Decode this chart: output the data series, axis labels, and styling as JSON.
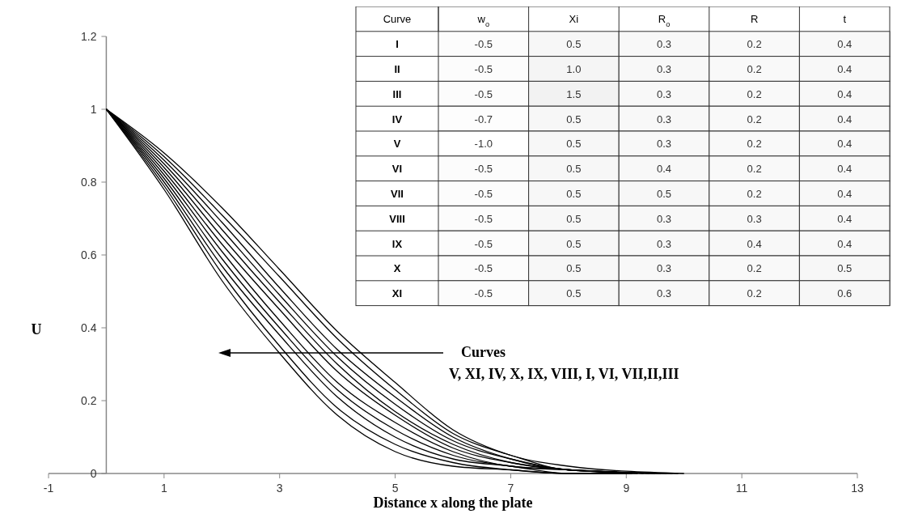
{
  "chart_data": [
    {
      "type": "line",
      "xlabel": "Distance x along the plate",
      "ylabel": "U",
      "series": [
        {
          "color": "#000000",
          "x": [
            0,
            1,
            2,
            3,
            4,
            5,
            6,
            7,
            8,
            9
          ],
          "values": [
            1,
            0.78,
            0.53,
            0.33,
            0.16,
            0.06,
            0.02,
            0.01,
            0,
            0
          ]
        },
        {
          "color": "#000000",
          "x": [
            0,
            1,
            2,
            3,
            4,
            5,
            6,
            7,
            8,
            9.1
          ],
          "values": [
            1,
            0.79,
            0.55,
            0.35,
            0.18,
            0.08,
            0.03,
            0.01,
            0,
            0
          ]
        },
        {
          "color": "#000000",
          "x": [
            0,
            1,
            2,
            3,
            4,
            5,
            6,
            7,
            8,
            9.2
          ],
          "values": [
            1,
            0.8,
            0.57,
            0.38,
            0.21,
            0.1,
            0.04,
            0.02,
            0,
            0
          ]
        },
        {
          "color": "#000000",
          "x": [
            0,
            1,
            2,
            3,
            4,
            5,
            6,
            7,
            8,
            9.3
          ],
          "values": [
            1,
            0.81,
            0.59,
            0.4,
            0.23,
            0.12,
            0.05,
            0.02,
            0.01,
            0
          ]
        },
        {
          "color": "#000000",
          "x": [
            0,
            1,
            2,
            3,
            4,
            5,
            6,
            7,
            8,
            9.4
          ],
          "values": [
            1,
            0.82,
            0.61,
            0.42,
            0.25,
            0.14,
            0.06,
            0.02,
            0.01,
            0
          ]
        },
        {
          "color": "#000000",
          "x": [
            0,
            1,
            2,
            3,
            4,
            5,
            6,
            7,
            8,
            9.5
          ],
          "values": [
            1,
            0.83,
            0.63,
            0.45,
            0.28,
            0.16,
            0.07,
            0.03,
            0.01,
            0
          ]
        },
        {
          "color": "#000000",
          "x": [
            0,
            1,
            2,
            3,
            4,
            5,
            6,
            7,
            8,
            9.6
          ],
          "values": [
            1,
            0.84,
            0.65,
            0.47,
            0.3,
            0.17,
            0.08,
            0.03,
            0.01,
            0
          ]
        },
        {
          "color": "#000000",
          "x": [
            0,
            1,
            2,
            3,
            4,
            5,
            6,
            7,
            8,
            9.7
          ],
          "values": [
            1,
            0.85,
            0.67,
            0.49,
            0.32,
            0.19,
            0.09,
            0.04,
            0.01,
            0
          ]
        },
        {
          "color": "#000000",
          "x": [
            0,
            1,
            2,
            3,
            4,
            5,
            6,
            7,
            8,
            9.8
          ],
          "values": [
            1,
            0.86,
            0.69,
            0.51,
            0.34,
            0.21,
            0.1,
            0.04,
            0.01,
            0
          ]
        },
        {
          "color": "#000000",
          "x": [
            0,
            1,
            2,
            3,
            4,
            5,
            6,
            7,
            8,
            9.9
          ],
          "values": [
            1,
            0.87,
            0.71,
            0.54,
            0.37,
            0.23,
            0.11,
            0.05,
            0.01,
            0
          ]
        },
        {
          "color": "#000000",
          "x": [
            0,
            1,
            2,
            3,
            4,
            5,
            6,
            7,
            8,
            10
          ],
          "values": [
            1,
            0.88,
            0.73,
            0.56,
            0.39,
            0.25,
            0.12,
            0.05,
            0.02,
            0
          ]
        }
      ],
      "xlim": [
        -1,
        13
      ],
      "xticks": [
        -1,
        1,
        3,
        5,
        7,
        9,
        11,
        13
      ],
      "ylim": [
        0,
        1.2
      ],
      "yticks": [
        0,
        0.2,
        0.4,
        0.6,
        0.8,
        1,
        1.2
      ],
      "annotations": [
        "Curves",
        "V, XI, IV, X, IX, VIII, I, VI, VII,II,III"
      ]
    },
    {
      "type": "heatmap",
      "ylabel": "Curve",
      "categories": [
        "w$_{o}$",
        "Xi",
        "R$_{o}$",
        "R",
        "t"
      ],
      "y_categories": [
        "I",
        "II",
        "III",
        "IV",
        "V",
        "VI",
        "VII",
        "VIII",
        "IX",
        "X",
        "XI"
      ],
      "cells": [
        [
          -0.5,
          0.5,
          0.3,
          0.2,
          0.4
        ],
        [
          -0.5,
          1.0,
          0.3,
          0.2,
          0.4
        ],
        [
          -0.5,
          1.5,
          0.3,
          0.2,
          0.4
        ],
        [
          -0.7,
          0.5,
          0.3,
          0.2,
          0.4
        ],
        [
          -1.0,
          0.5,
          0.3,
          0.2,
          0.4
        ],
        [
          -0.5,
          0.5,
          0.4,
          0.2,
          0.4
        ],
        [
          -0.5,
          0.5,
          0.5,
          0.2,
          0.4
        ],
        [
          -0.5,
          0.5,
          0.3,
          0.3,
          0.4
        ],
        [
          -0.5,
          0.5,
          0.3,
          0.4,
          0.4
        ],
        [
          -0.5,
          0.5,
          0.3,
          0.2,
          0.5
        ],
        [
          -0.5,
          0.5,
          0.3,
          0.2,
          0.6
        ]
      ],
      "cell_labels": [
        [
          "-0.5",
          "0.5",
          "0.3",
          "0.2",
          "0.4"
        ],
        [
          "-0.5",
          "1.0",
          "0.3",
          "0.2",
          "0.4"
        ],
        [
          "-0.5",
          "1.5",
          "0.3",
          "0.2",
          "0.4"
        ],
        [
          "-0.7",
          "0.5",
          "0.3",
          "0.2",
          "0.4"
        ],
        [
          "-1.0",
          "0.5",
          "0.3",
          "0.2",
          "0.4"
        ],
        [
          "-0.5",
          "0.5",
          "0.4",
          "0.2",
          "0.4"
        ],
        [
          "-0.5",
          "0.5",
          "0.5",
          "0.2",
          "0.4"
        ],
        [
          "-0.5",
          "0.5",
          "0.3",
          "0.3",
          "0.4"
        ],
        [
          "-0.5",
          "0.5",
          "0.3",
          "0.4",
          "0.4"
        ],
        [
          "-0.5",
          "0.5",
          "0.3",
          "0.2",
          "0.5"
        ],
        [
          "-0.5",
          "0.5",
          "0.3",
          "0.2",
          "0.6"
        ]
      ]
    }
  ]
}
